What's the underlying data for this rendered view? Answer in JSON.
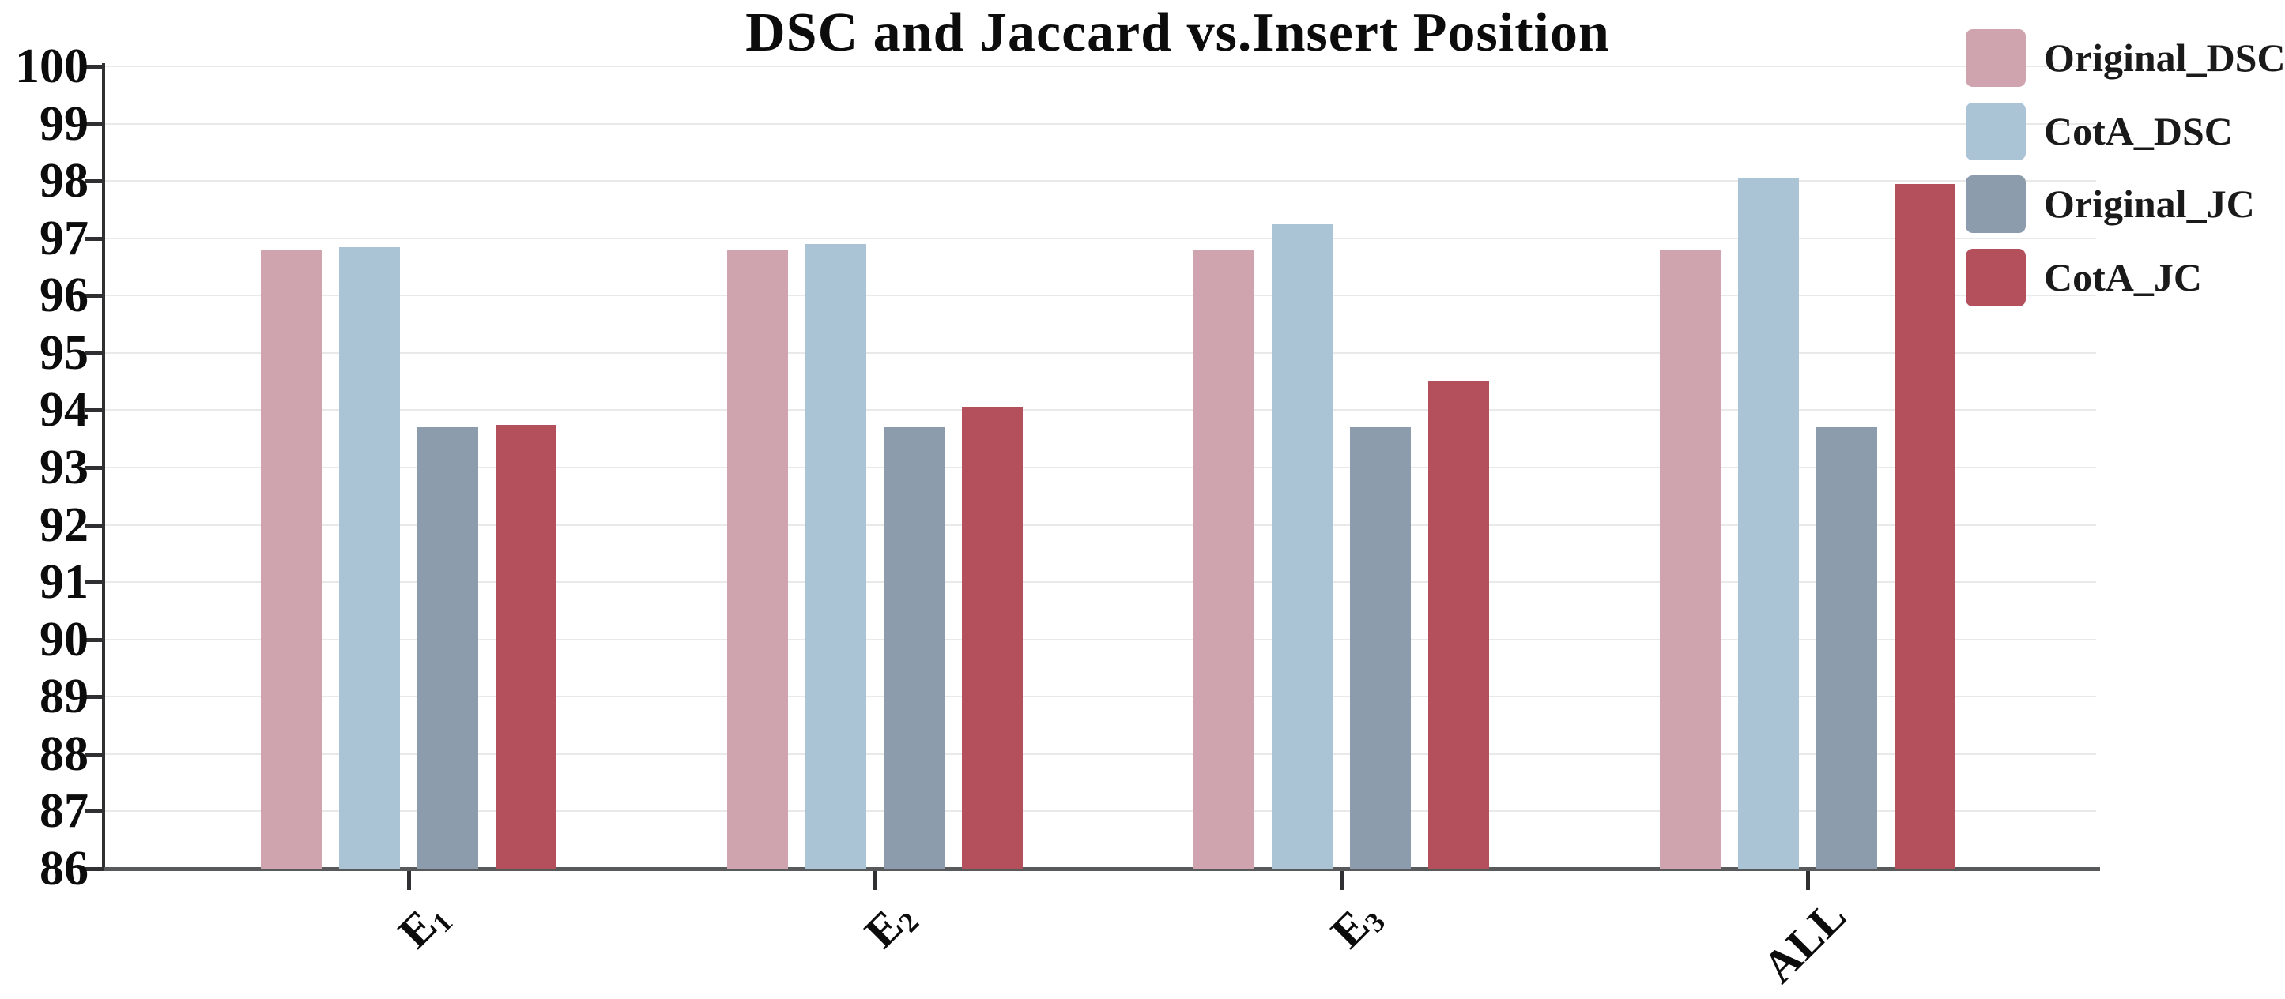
{
  "chart_data": {
    "type": "bar",
    "title": "DSC and Jaccard vs.Insert Position",
    "categories": [
      {
        "base": "E",
        "sub": "1"
      },
      {
        "base": "E",
        "sub": "2"
      },
      {
        "base": "E",
        "sub": "3"
      },
      {
        "base": "ALL",
        "sub": ""
      }
    ],
    "series": [
      {
        "name": "Original_DSC",
        "color": "#d0a4ae",
        "values": [
          96.8,
          96.8,
          96.8,
          96.8
        ]
      },
      {
        "name": "CotA_DSC",
        "color": "#aac4d6",
        "values": [
          96.85,
          96.9,
          97.25,
          98.05
        ]
      },
      {
        "name": "Original_JC",
        "color": "#8c9cac",
        "values": [
          93.7,
          93.7,
          93.7,
          93.7
        ]
      },
      {
        "name": "CotA_JC",
        "color": "#b4505c",
        "values": [
          93.75,
          94.05,
          94.5,
          97.95
        ]
      }
    ],
    "ylabel": "",
    "xlabel": "",
    "ylim": [
      86,
      100
    ],
    "ytick_step": 1,
    "grid": true,
    "legend_position": "top-right",
    "xtick_rotation_deg": 45,
    "axis_color": "#303032",
    "gridline_color": "#e9e9e9",
    "background_color": "#ffffff"
  }
}
